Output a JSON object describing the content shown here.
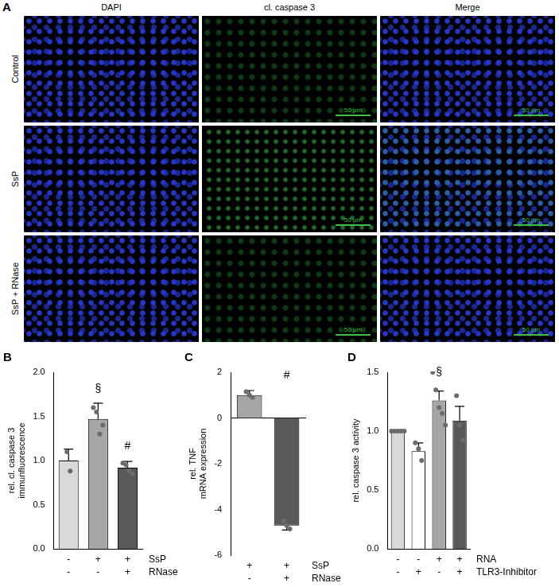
{
  "image_panel": {
    "letter": "A",
    "columns": [
      "DAPI",
      "cl. caspase 3",
      "Merge"
    ],
    "rows": [
      "Control",
      "SsP",
      "SsP + RNase"
    ],
    "scale_bar": "50 µm"
  },
  "chart_data": [
    {
      "letter": "B",
      "type": "bar",
      "ylabel": [
        "rel. cl. caspase 3",
        "immunfluorescence"
      ],
      "categories": [
        null,
        null,
        null
      ],
      "values": [
        1.0,
        1.47,
        0.92
      ],
      "errors": [
        0.13,
        0.18,
        0.07
      ],
      "points": [
        [
          1.1,
          0.88
        ],
        [
          1.6,
          1.55,
          1.3,
          1.4
        ],
        [
          0.97,
          0.95,
          0.88,
          0.85
        ]
      ],
      "colors": [
        "#d9d9d9",
        "#a6a6a6",
        "#595959"
      ],
      "ylim": [
        0,
        2
      ],
      "yticks": [
        {
          "value": 0,
          "label": "0.0"
        },
        {
          "value": 0.5,
          "label": "0.5"
        },
        {
          "value": 1,
          "label": "1.0"
        },
        {
          "value": 1.5,
          "label": "1.5"
        },
        {
          "value": 2,
          "label": "2.0"
        }
      ],
      "grid": false,
      "rows": [
        {
          "name": "SsP",
          "signs": [
            "-",
            "+",
            "+"
          ]
        },
        {
          "name": "RNase",
          "signs": [
            "-",
            "-",
            "+"
          ]
        }
      ],
      "annotations": [
        {
          "text": "§",
          "index": 1,
          "y": 1.75
        },
        {
          "text": "#",
          "index": 2,
          "y": 1.1
        }
      ]
    },
    {
      "letter": "C",
      "type": "bar",
      "ylabel": [
        "rel. TNF",
        "mRNA expression"
      ],
      "categories": [
        null,
        null
      ],
      "values": [
        1.0,
        -4.7
      ],
      "errors": [
        0.2,
        0.2
      ],
      "points": [
        [
          1.15,
          1.0,
          0.9
        ],
        [
          -4.5,
          -4.7,
          -4.85
        ]
      ],
      "colors": [
        "#a6a6a6",
        "#595959"
      ],
      "ylim": [
        -6,
        2
      ],
      "yticks": [
        -6,
        -4,
        -2,
        0,
        2
      ],
      "grid": false,
      "rows": [
        {
          "name": "SsP",
          "signs": [
            "+",
            "+"
          ]
        },
        {
          "name": "RNase",
          "signs": [
            "-",
            "+"
          ]
        }
      ],
      "annotations": [
        {
          "text": "#",
          "index": 1,
          "y": 1.6
        }
      ]
    },
    {
      "letter": "D",
      "type": "bar",
      "ylabel": "rel. caspase 3 activity",
      "categories": [
        null,
        null,
        null,
        null
      ],
      "values": [
        1.0,
        0.83,
        1.26,
        1.09
      ],
      "errors": [
        0,
        0.07,
        0.08,
        0.12
      ],
      "points": [
        [
          1,
          1,
          1,
          1,
          1
        ],
        [
          0.9,
          0.85,
          0.75
        ],
        [
          1.5,
          1.35,
          1.2,
          1.15,
          1.05
        ],
        [
          1.3,
          1.05,
          0.92
        ]
      ],
      "colors": [
        "#d9d9d9",
        "#ffffff",
        "#a6a6a6",
        "#595959"
      ],
      "ylim": [
        0,
        1.5
      ],
      "yticks": [
        {
          "value": 0,
          "label": "0.0"
        },
        {
          "value": 0.5,
          "label": "0.5"
        },
        {
          "value": 1,
          "label": "1.0"
        },
        {
          "value": 1.5,
          "label": "1.5"
        }
      ],
      "grid": false,
      "rows": [
        {
          "name": "RNA",
          "signs": [
            "-",
            "-",
            "+",
            "+"
          ]
        },
        {
          "name": "TLR3-Inhibitor",
          "signs": [
            "-",
            "+",
            "-",
            "+"
          ]
        }
      ],
      "annotations": [
        {
          "text": "§",
          "index": 2,
          "y": 1.45
        }
      ]
    }
  ]
}
